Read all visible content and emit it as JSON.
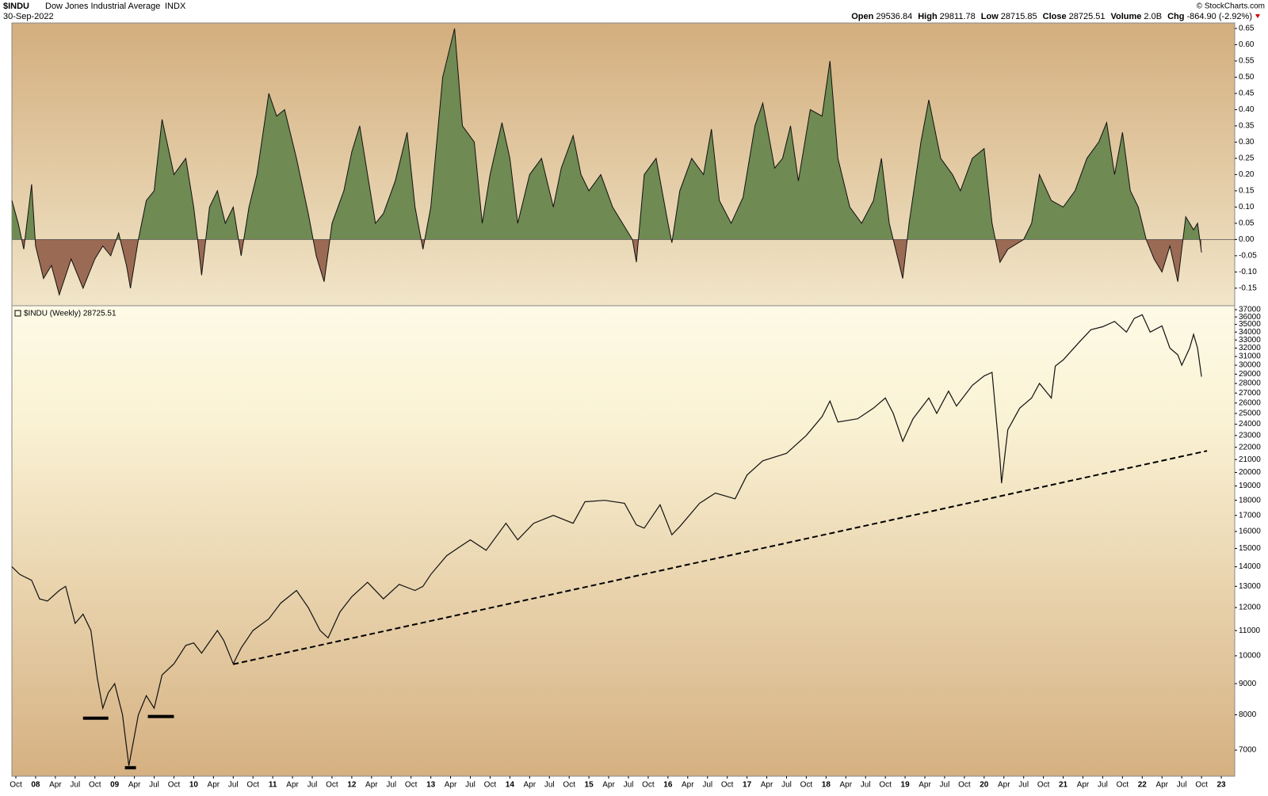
{
  "header": {
    "symbol": "$INDU",
    "name": "Dow Jones Industrial Average",
    "exchange": "INDX",
    "date": "30-Sep-2022",
    "ohlc": [
      {
        "label": "Open",
        "value": "29536.84"
      },
      {
        "label": "High",
        "value": "29811.78"
      },
      {
        "label": "Low",
        "value": "28715.85"
      },
      {
        "label": "Close",
        "value": "28725.51"
      },
      {
        "label": "Volume",
        "value": "2.0B"
      },
      {
        "label": "Chg",
        "value": "-864.90 (-2.92%)"
      }
    ],
    "credit": "© StockCharts.com"
  },
  "chart_data": [
    {
      "type": "area",
      "xlim": [
        2007.7,
        2023.17
      ],
      "ylim": [
        -0.204,
        0.667
      ],
      "color_positive": "#6f8a52",
      "color_negative": "#9b6a55",
      "line_color": "#111111",
      "yticks": [
        0.65,
        {
          "value": 0.6,
          "label": "0.60"
        },
        0.55,
        {
          "value": 0.5,
          "label": "0.50"
        },
        0.45,
        {
          "value": 0.4,
          "label": "0.40"
        },
        0.35,
        {
          "value": 0.3,
          "label": "0.30"
        },
        0.25,
        {
          "value": 0.2,
          "label": "0.20"
        },
        0.15,
        {
          "value": 0.1,
          "label": "0.10"
        },
        0.05,
        {
          "value": 0,
          "label": "0.00"
        },
        -0.05,
        {
          "value": -0.1,
          "label": "-0.10"
        },
        -0.15
      ],
      "x": [
        2007.7,
        2007.78,
        2007.85,
        2007.95,
        2008.0,
        2008.1,
        2008.2,
        2008.3,
        2008.45,
        2008.6,
        2008.75,
        2008.85,
        2008.95,
        2009.05,
        2009.15,
        2009.2,
        2009.3,
        2009.4,
        2009.5,
        2009.6,
        2009.75,
        2009.9,
        2010.0,
        2010.05,
        2010.1,
        2010.2,
        2010.3,
        2010.4,
        2010.5,
        2010.6,
        2010.7,
        2010.8,
        2010.95,
        2011.05,
        2011.15,
        2011.3,
        2011.45,
        2011.55,
        2011.65,
        2011.75,
        2011.9,
        2012.0,
        2012.1,
        2012.2,
        2012.3,
        2012.4,
        2012.55,
        2012.7,
        2012.8,
        2012.9,
        2013.0,
        2013.15,
        2013.3,
        2013.4,
        2013.55,
        2013.65,
        2013.75,
        2013.9,
        2014.0,
        2014.1,
        2014.25,
        2014.4,
        2014.55,
        2014.65,
        2014.8,
        2014.9,
        2015.0,
        2015.15,
        2015.3,
        2015.45,
        2015.55,
        2015.6,
        2015.7,
        2015.85,
        2016.0,
        2016.05,
        2016.15,
        2016.3,
        2016.45,
        2016.55,
        2016.65,
        2016.8,
        2016.95,
        2017.1,
        2017.2,
        2017.35,
        2017.45,
        2017.55,
        2017.65,
        2017.8,
        2017.95,
        2018.05,
        2018.15,
        2018.3,
        2018.45,
        2018.6,
        2018.7,
        2018.8,
        2018.9,
        2018.97,
        2019.05,
        2019.2,
        2019.3,
        2019.45,
        2019.6,
        2019.7,
        2019.85,
        2020.0,
        2020.1,
        2020.2,
        2020.3,
        2020.5,
        2020.6,
        2020.7,
        2020.85,
        2021.0,
        2021.15,
        2021.3,
        2021.45,
        2021.55,
        2021.65,
        2021.75,
        2021.85,
        2021.95,
        2022.05,
        2022.15,
        2022.25,
        2022.35,
        2022.45,
        2022.55,
        2022.65,
        2022.7,
        2022.75
      ],
      "values": [
        0.12,
        0.05,
        -0.03,
        0.17,
        -0.02,
        -0.12,
        -0.08,
        -0.17,
        -0.06,
        -0.15,
        -0.06,
        -0.02,
        -0.05,
        0.02,
        -0.08,
        -0.15,
        0.0,
        0.12,
        0.15,
        0.37,
        0.2,
        0.25,
        0.1,
        0.0,
        -0.11,
        0.1,
        0.15,
        0.05,
        0.1,
        -0.05,
        0.1,
        0.2,
        0.45,
        0.38,
        0.4,
        0.25,
        0.08,
        -0.05,
        -0.13,
        0.05,
        0.15,
        0.27,
        0.35,
        0.2,
        0.05,
        0.08,
        0.18,
        0.33,
        0.1,
        -0.03,
        0.1,
        0.5,
        0.65,
        0.35,
        0.3,
        0.05,
        0.2,
        0.36,
        0.25,
        0.05,
        0.2,
        0.25,
        0.1,
        0.22,
        0.32,
        0.2,
        0.15,
        0.2,
        0.1,
        0.04,
        0.0,
        -0.07,
        0.2,
        0.25,
        0.05,
        -0.01,
        0.15,
        0.25,
        0.2,
        0.34,
        0.12,
        0.05,
        0.13,
        0.35,
        0.42,
        0.22,
        0.25,
        0.35,
        0.18,
        0.4,
        0.38,
        0.55,
        0.25,
        0.1,
        0.05,
        0.12,
        0.25,
        0.05,
        -0.05,
        -0.12,
        0.05,
        0.3,
        0.43,
        0.25,
        0.2,
        0.15,
        0.25,
        0.28,
        0.05,
        -0.07,
        -0.03,
        0.0,
        0.05,
        0.2,
        0.12,
        0.1,
        0.15,
        0.25,
        0.3,
        0.36,
        0.2,
        0.33,
        0.15,
        0.1,
        0.0,
        -0.06,
        -0.1,
        -0.02,
        -0.13,
        0.07,
        0.03,
        0.05,
        -0.04
      ]
    },
    {
      "type": "line",
      "legend": "$INDU (Weekly) 28725.51",
      "log_scale": true,
      "color": "#111111",
      "xlim": [
        2007.7,
        2023.17
      ],
      "ylim": [
        6343,
        37560
      ],
      "yticks": [
        7000,
        8000,
        9000,
        10000,
        11000,
        12000,
        13000,
        14000,
        15000,
        16000,
        17000,
        18000,
        19000,
        20000,
        21000,
        22000,
        23000,
        24000,
        25000,
        26000,
        27000,
        28000,
        29000,
        30000,
        31000,
        32000,
        33000,
        34000,
        35000,
        36000,
        37000
      ],
      "xticks": [
        {
          "value": 2007.75,
          "label": "Oct"
        },
        {
          "value": 2008,
          "label": "08"
        },
        {
          "value": 2008.25,
          "label": "Apr"
        },
        {
          "value": 2008.5,
          "label": "Jul"
        },
        {
          "value": 2008.75,
          "label": "Oct"
        },
        {
          "value": 2009,
          "label": "09"
        },
        {
          "value": 2009.25,
          "label": "Apr"
        },
        {
          "value": 2009.5,
          "label": "Jul"
        },
        {
          "value": 2009.75,
          "label": "Oct"
        },
        {
          "value": 2010,
          "label": "10"
        },
        {
          "value": 2010.25,
          "label": "Apr"
        },
        {
          "value": 2010.5,
          "label": "Jul"
        },
        {
          "value": 2010.75,
          "label": "Oct"
        },
        {
          "value": 2011,
          "label": "11"
        },
        {
          "value": 2011.25,
          "label": "Apr"
        },
        {
          "value": 2011.5,
          "label": "Jul"
        },
        {
          "value": 2011.75,
          "label": "Oct"
        },
        {
          "value": 2012,
          "label": "12"
        },
        {
          "value": 2012.25,
          "label": "Apr"
        },
        {
          "value": 2012.5,
          "label": "Jul"
        },
        {
          "value": 2012.75,
          "label": "Oct"
        },
        {
          "value": 2013,
          "label": "13"
        },
        {
          "value": 2013.25,
          "label": "Apr"
        },
        {
          "value": 2013.5,
          "label": "Jul"
        },
        {
          "value": 2013.75,
          "label": "Oct"
        },
        {
          "value": 2014,
          "label": "14"
        },
        {
          "value": 2014.25,
          "label": "Apr"
        },
        {
          "value": 2014.5,
          "label": "Jul"
        },
        {
          "value": 2014.75,
          "label": "Oct"
        },
        {
          "value": 2015,
          "label": "15"
        },
        {
          "value": 2015.25,
          "label": "Apr"
        },
        {
          "value": 2015.5,
          "label": "Jul"
        },
        {
          "value": 2015.75,
          "label": "Oct"
        },
        {
          "value": 2016,
          "label": "16"
        },
        {
          "value": 2016.25,
          "label": "Apr"
        },
        {
          "value": 2016.5,
          "label": "Jul"
        },
        {
          "value": 2016.75,
          "label": "Oct"
        },
        {
          "value": 2017,
          "label": "17"
        },
        {
          "value": 2017.25,
          "label": "Apr"
        },
        {
          "value": 2017.5,
          "label": "Jul"
        },
        {
          "value": 2017.75,
          "label": "Oct"
        },
        {
          "value": 2018,
          "label": "18"
        },
        {
          "value": 2018.25,
          "label": "Apr"
        },
        {
          "value": 2018.5,
          "label": "Jul"
        },
        {
          "value": 2018.75,
          "label": "Oct"
        },
        {
          "value": 2019,
          "label": "19"
        },
        {
          "value": 2019.25,
          "label": "Apr"
        },
        {
          "value": 2019.5,
          "label": "Jul"
        },
        {
          "value": 2019.75,
          "label": "Oct"
        },
        {
          "value": 2020,
          "label": "20"
        },
        {
          "value": 2020.25,
          "label": "Apr"
        },
        {
          "value": 2020.5,
          "label": "Jul"
        },
        {
          "value": 2020.75,
          "label": "Oct"
        },
        {
          "value": 2021,
          "label": "21"
        },
        {
          "value": 2021.25,
          "label": "Apr"
        },
        {
          "value": 2021.5,
          "label": "Jul"
        },
        {
          "value": 2021.75,
          "label": "Oct"
        },
        {
          "value": 2022,
          "label": "22"
        },
        {
          "value": 2022.25,
          "label": "Apr"
        },
        {
          "value": 2022.5,
          "label": "Jul"
        },
        {
          "value": 2022.75,
          "label": "Oct"
        },
        {
          "value": 2023,
          "label": "23"
        }
      ],
      "x": [
        2007.7,
        2007.8,
        2007.95,
        2008.05,
        2008.15,
        2008.3,
        2008.38,
        2008.5,
        2008.6,
        2008.7,
        2008.78,
        2008.85,
        2008.92,
        2009.0,
        2009.1,
        2009.18,
        2009.3,
        2009.4,
        2009.5,
        2009.6,
        2009.75,
        2009.9,
        2010.0,
        2010.1,
        2010.3,
        2010.38,
        2010.5,
        2010.6,
        2010.75,
        2010.95,
        2011.1,
        2011.3,
        2011.45,
        2011.6,
        2011.7,
        2011.85,
        2012.0,
        2012.2,
        2012.4,
        2012.6,
        2012.8,
        2012.9,
        2013.0,
        2013.2,
        2013.4,
        2013.5,
        2013.7,
        2013.95,
        2014.1,
        2014.3,
        2014.55,
        2014.8,
        2014.95,
        2015.2,
        2015.45,
        2015.6,
        2015.7,
        2015.9,
        2016.05,
        2016.15,
        2016.4,
        2016.6,
        2016.85,
        2017.0,
        2017.2,
        2017.5,
        2017.75,
        2017.95,
        2018.05,
        2018.15,
        2018.4,
        2018.6,
        2018.75,
        2018.85,
        2018.97,
        2019.1,
        2019.3,
        2019.4,
        2019.55,
        2019.65,
        2019.85,
        2020.0,
        2020.1,
        2020.2,
        2020.22,
        2020.3,
        2020.45,
        2020.6,
        2020.7,
        2020.85,
        2020.9,
        2021.0,
        2021.2,
        2021.35,
        2021.5,
        2021.65,
        2021.8,
        2021.9,
        2022.0,
        2022.1,
        2022.25,
        2022.35,
        2022.45,
        2022.5,
        2022.6,
        2022.65,
        2022.7,
        2022.75
      ],
      "values": [
        14000,
        13600,
        13300,
        12400,
        12300,
        12800,
        13000,
        11300,
        11700,
        11000,
        9200,
        8200,
        8700,
        9000,
        8000,
        6600,
        8000,
        8600,
        8200,
        9300,
        9700,
        10400,
        10500,
        10100,
        11000,
        10600,
        9700,
        10300,
        11000,
        11500,
        12200,
        12800,
        12000,
        11000,
        10700,
        11800,
        12500,
        13200,
        12400,
        13100,
        12800,
        13000,
        13600,
        14600,
        15200,
        15500,
        14900,
        16500,
        15500,
        16500,
        17000,
        16500,
        17900,
        18000,
        17800,
        16400,
        16200,
        17700,
        15800,
        16300,
        17800,
        18500,
        18100,
        19800,
        20900,
        21500,
        23000,
        24700,
        26200,
        24200,
        24500,
        25500,
        26500,
        25000,
        22500,
        24500,
        26500,
        25000,
        27200,
        25700,
        27800,
        28800,
        29200,
        21000,
        19200,
        23500,
        25500,
        26500,
        28000,
        26500,
        29900,
        30600,
        32700,
        34300,
        34700,
        35400,
        34000,
        35800,
        36300,
        34000,
        34800,
        32000,
        31200,
        30000,
        32000,
        33700,
        32000,
        28725.51
      ],
      "trendline": {
        "x": [
          2010.5,
          2022.82
        ],
        "y": [
          9686,
          21700
        ]
      },
      "levels": [
        {
          "x": [
            2008.6,
            2008.92
          ],
          "y": 7900
        },
        {
          "x": [
            2009.13,
            2009.27
          ],
          "y": 6550
        },
        {
          "x": [
            2009.42,
            2009.75
          ],
          "y": 7950
        }
      ]
    }
  ]
}
